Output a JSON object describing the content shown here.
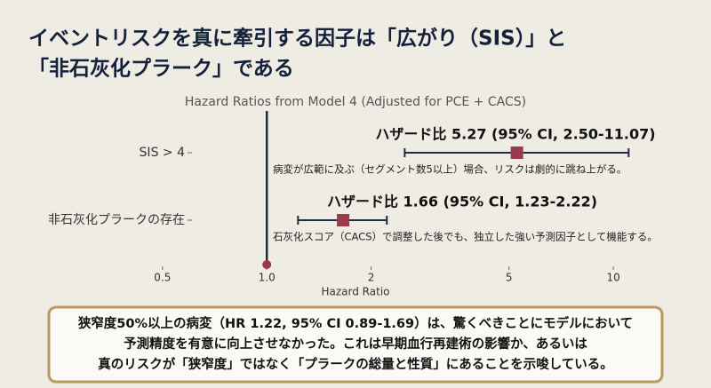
{
  "chart_data": {
    "type": "forest",
    "title": [
      "イベントリスクを真に牽引する因子は「広がり（SIS）」と",
      "「非石灰化プラーク」である"
    ],
    "subtitle": "Hazard Ratios from Model 4 (Adjusted for PCE + CACS)",
    "xlabel": "Hazard Ratio",
    "categories": [
      "SIS > 4",
      "非石灰化プラークの存在"
    ],
    "values": [
      5.27,
      1.66
    ],
    "lower": [
      2.5,
      1.23
    ],
    "upper": [
      11.07,
      2.22
    ],
    "value_labels": [
      "ハザード比 5.27 (95% CI, 2.50-11.07)",
      "ハザード比 1.66 (95% CI, 1.23-2.22)"
    ],
    "notes": [
      "病変が広範に及ぶ（セグメント数5以上）場合、リスクは劇的に跳ね上がる。",
      "石灰化スコア（CACS）で調整した後でも、独立した強い予測因子として機能する。"
    ],
    "log_x": true,
    "xlim": [
      0.45,
      12
    ],
    "xticks": [
      0.5,
      {
        "value": 1,
        "label": "1.0"
      },
      2,
      5,
      10
    ],
    "reference_line": 1,
    "marker_color": "#9b3a4c",
    "line_color": "#1f2a44"
  },
  "callout": {
    "lines": [
      "狭窄度50%以上の病変（HR 1.22, 95% CI 0.89-1.69）は、驚くべきことにモデルにおいて",
      "予測精度を有意に向上させなかった。これは早期血行再建術の影響か、あるいは",
      "真のリスクが「狭窄度」ではなく「プラークの総量と性質」にあることを示唆している。"
    ]
  }
}
